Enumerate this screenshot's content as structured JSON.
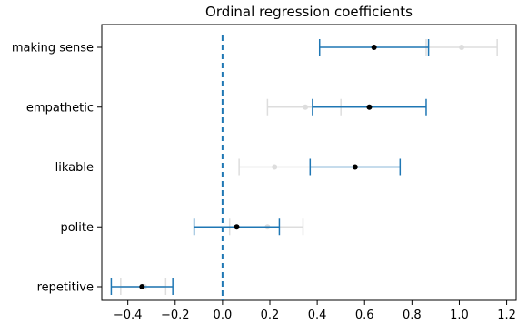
{
  "chart_data": {
    "type": "scatter",
    "title": "Ordinal regression coefficients",
    "xlabel": "",
    "ylabel": "",
    "xlim": [
      -0.51,
      1.24
    ],
    "xticks": [
      -0.4,
      -0.2,
      0.0,
      0.2,
      0.4,
      0.6,
      0.8,
      1.0,
      1.2
    ],
    "xtick_labels": [
      "−0.4",
      "−0.2",
      "0.0",
      "0.2",
      "0.4",
      "0.6",
      "0.8",
      "1.0",
      "1.2"
    ],
    "categories": [
      "making sense",
      "empathetic",
      "likable",
      "polite",
      "repetitive"
    ],
    "grid": false,
    "reference_line": {
      "x": 0.0,
      "style": "dashed",
      "color": "#1f77b4"
    },
    "series": [
      {
        "role": "primary",
        "color": "#1f77b4",
        "point_color": "#000000",
        "points": [
          {
            "category": "making sense",
            "estimate": 0.64,
            "low": 0.41,
            "high": 0.87
          },
          {
            "category": "empathetic",
            "estimate": 0.62,
            "low": 0.38,
            "high": 0.86
          },
          {
            "category": "likable",
            "estimate": 0.56,
            "low": 0.37,
            "high": 0.75
          },
          {
            "category": "polite",
            "estimate": 0.06,
            "low": -0.12,
            "high": 0.24
          },
          {
            "category": "repetitive",
            "estimate": -0.34,
            "low": -0.47,
            "high": -0.21
          }
        ]
      },
      {
        "role": "secondary",
        "color": "#dddddd",
        "point_color": "#dddddd",
        "points": [
          {
            "category": "making sense",
            "estimate": 1.01,
            "low": 0.86,
            "high": 1.16
          },
          {
            "category": "empathetic",
            "estimate": 0.35,
            "low": 0.19,
            "high": 0.5
          },
          {
            "category": "likable",
            "estimate": 0.22,
            "low": 0.07,
            "high": 0.37
          },
          {
            "category": "polite",
            "estimate": 0.19,
            "low": 0.03,
            "high": 0.34
          },
          {
            "category": "repetitive",
            "estimate": -0.33,
            "low": -0.43,
            "high": -0.24
          }
        ]
      }
    ]
  }
}
